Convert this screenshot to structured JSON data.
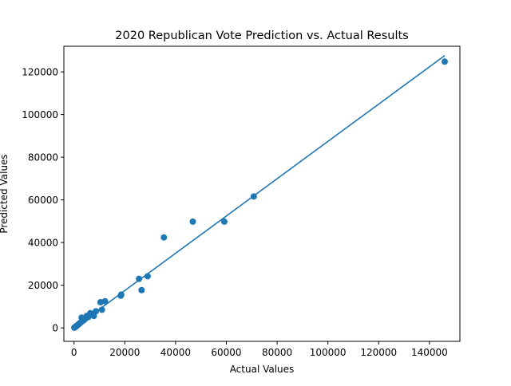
{
  "chart_data": {
    "type": "scatter",
    "title": "2020 Republican Vote Prediction vs. Actual Results",
    "xlabel": "Actual Values",
    "ylabel": "Predicted Values",
    "xlim": [
      -4000,
      152000
    ],
    "ylim": [
      -6300,
      132000
    ],
    "xticks": [
      0,
      20000,
      40000,
      60000,
      80000,
      100000,
      120000,
      140000
    ],
    "xtick_labels": [
      "0",
      "20000",
      "40000",
      "60000",
      "80000",
      "100000",
      "120000",
      "140000"
    ],
    "yticks": [
      0,
      20000,
      40000,
      60000,
      80000,
      100000,
      120000
    ],
    "ytick_labels": [
      "0",
      "20000",
      "40000",
      "60000",
      "80000",
      "100000",
      "120000"
    ],
    "grid": false,
    "series": [
      {
        "kind": "scatter",
        "color": "#1f77b4",
        "x": [
          146000,
          70800,
          59200,
          46800,
          35400,
          29000,
          26600,
          25600,
          18600,
          18400,
          12200,
          11000,
          10400,
          8600,
          7800,
          7400,
          6400,
          5600,
          5000,
          4400,
          3800,
          3400,
          3000,
          2800,
          2500,
          2200,
          2000,
          1800,
          1600,
          1400,
          1200,
          1000,
          800,
          600,
          400,
          300,
          200,
          100
        ],
        "y": [
          124800,
          61600,
          49800,
          49800,
          42400,
          24200,
          17700,
          23000,
          15600,
          15100,
          12500,
          8500,
          12000,
          7800,
          5600,
          6200,
          6900,
          5100,
          5600,
          4200,
          3600,
          3300,
          4800,
          2700,
          2400,
          2100,
          1900,
          1700,
          1500,
          1300,
          1100,
          900,
          700,
          550,
          400,
          300,
          200,
          100
        ]
      },
      {
        "kind": "line",
        "color": "#1f77b4",
        "x": [
          100,
          146000
        ],
        "y": [
          100,
          127600
        ]
      }
    ]
  }
}
